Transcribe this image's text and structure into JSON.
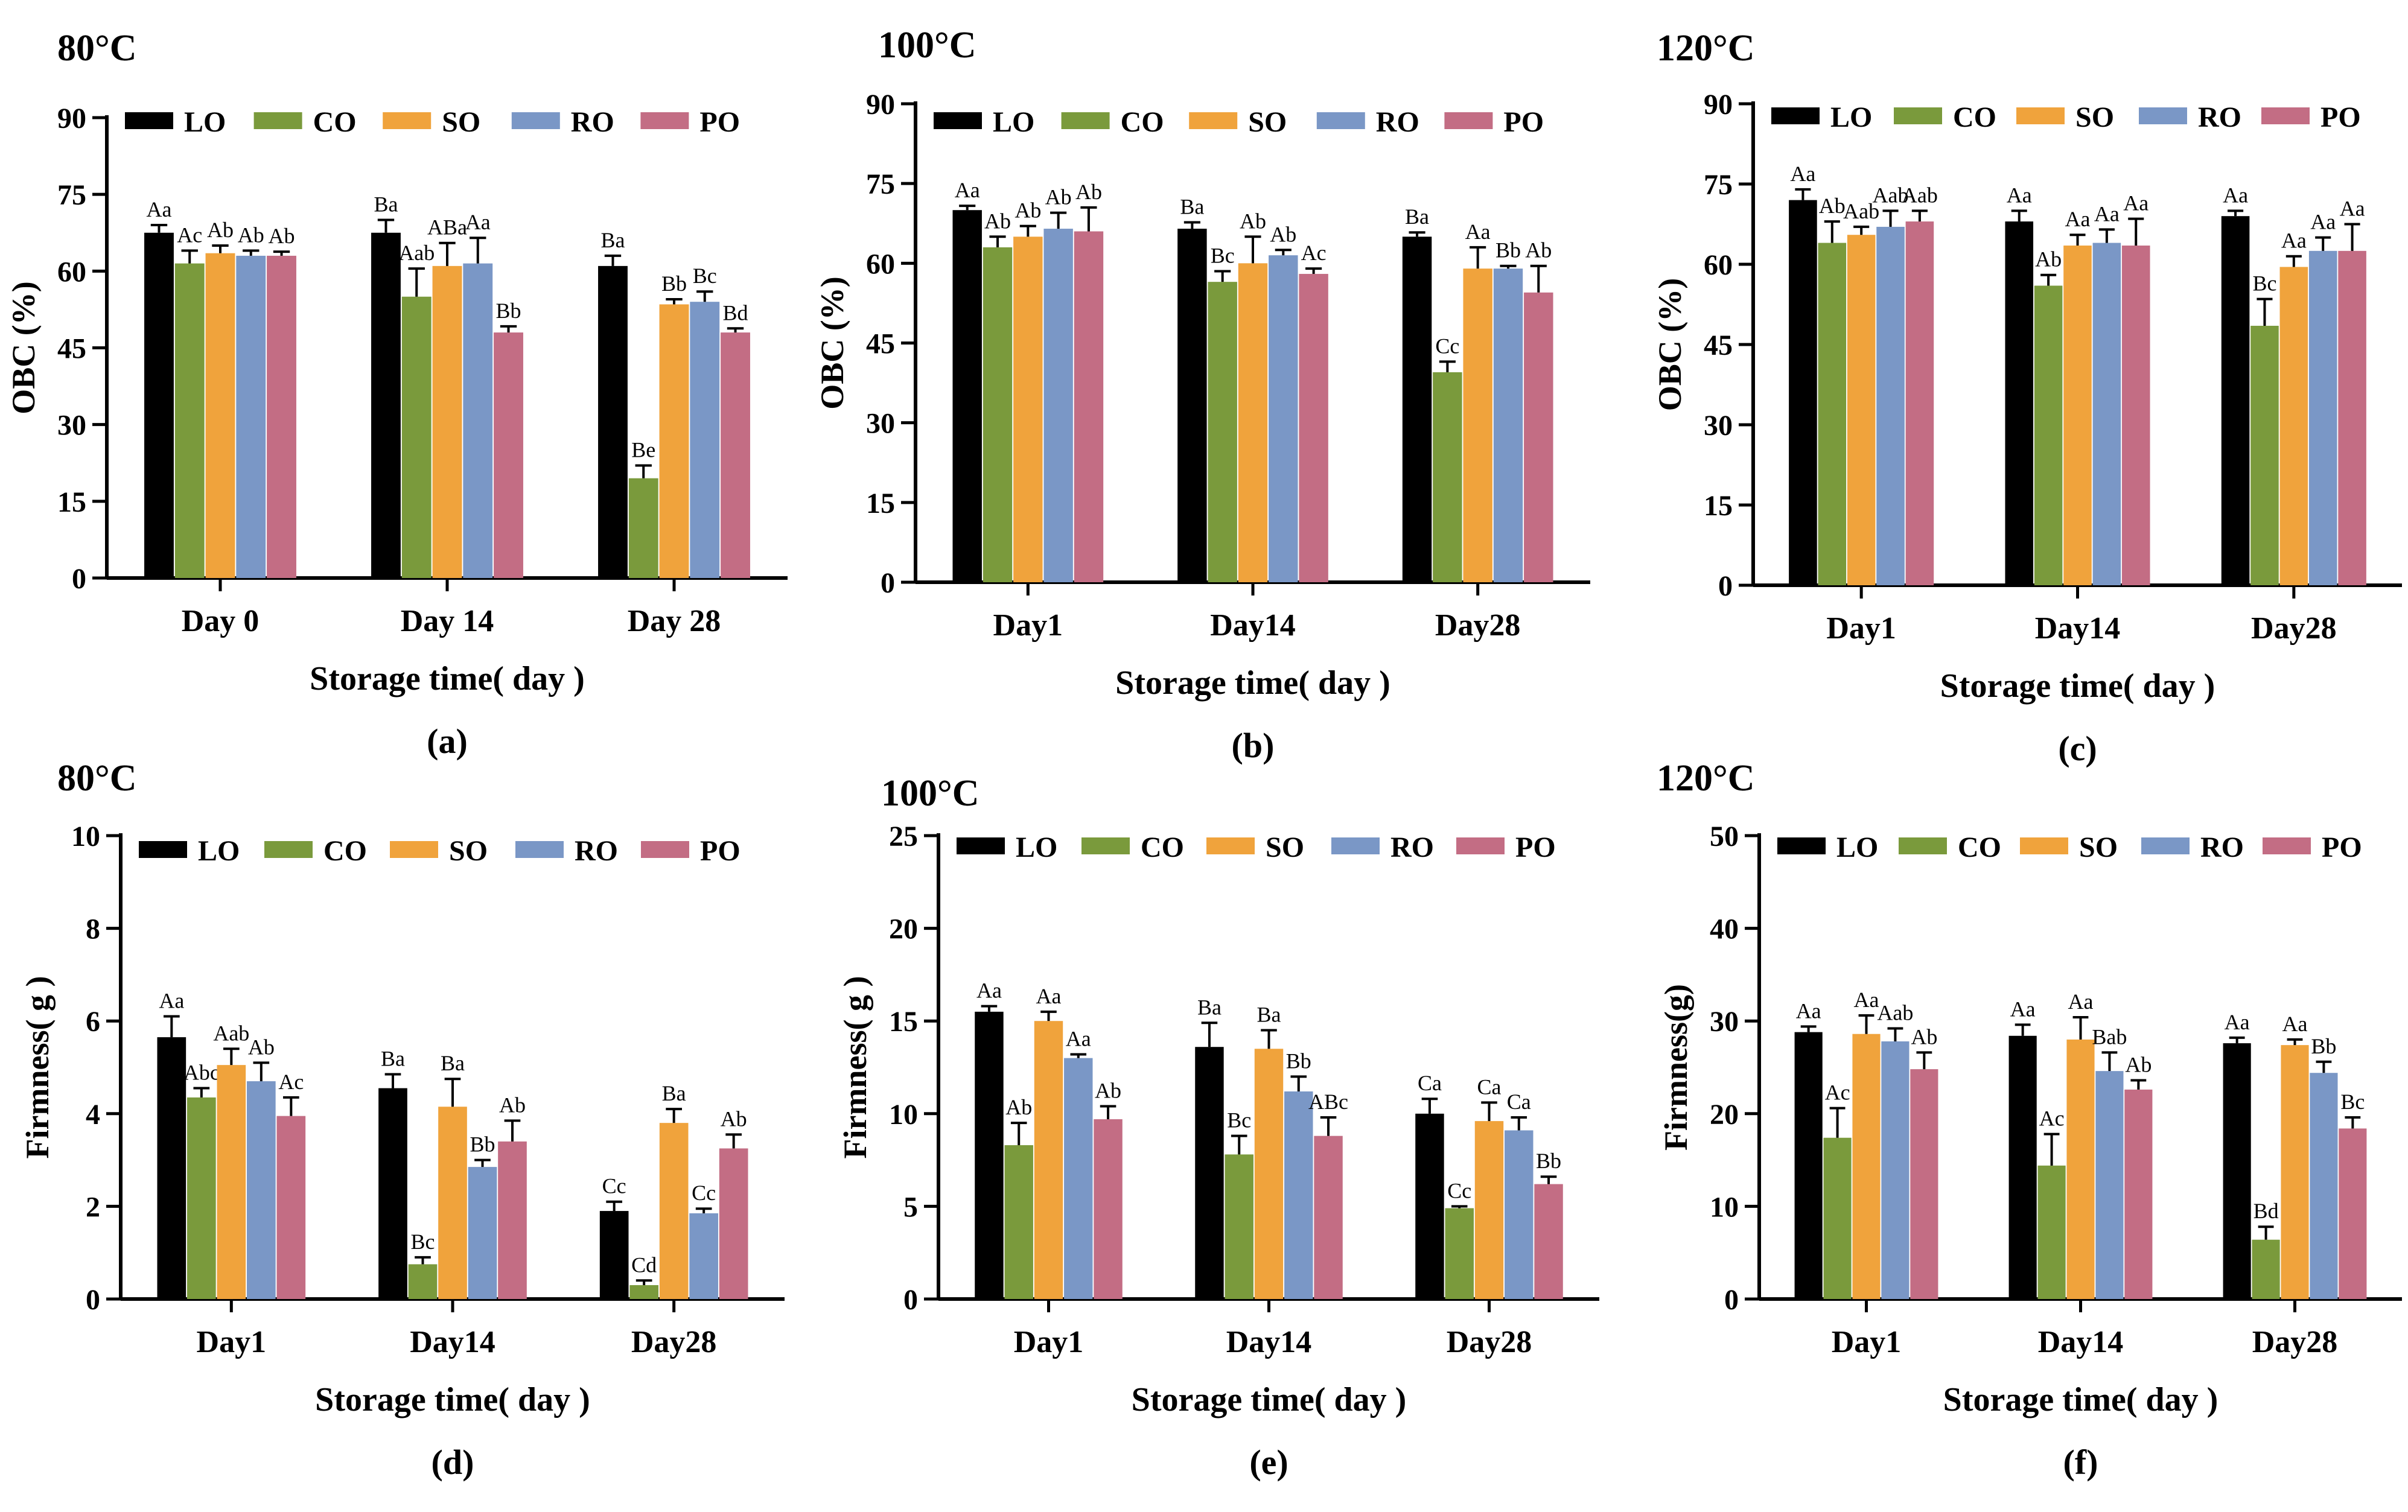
{
  "colors": {
    "LO": "#000000",
    "CO": "#7a9a3c",
    "SO": "#f0a33c",
    "RO": "#7a97c6",
    "PO": "#c36d84"
  },
  "series_names": [
    "LO",
    "CO",
    "SO",
    "RO",
    "PO"
  ],
  "chart_data": [
    {
      "type": "bar",
      "title": "80°C",
      "panel_label": "(a)",
      "xlabel": "Storage time( day )",
      "ylabel": "OBC (%)",
      "ylim": [
        0,
        90
      ],
      "yticks": [
        0,
        15,
        30,
        45,
        60,
        75,
        90
      ],
      "categories": [
        "Day 0",
        "Day 14",
        "Day 28"
      ],
      "series": [
        {
          "name": "LO",
          "values": [
            67.5,
            67.5,
            61.0
          ],
          "errors": [
            1.5,
            2.5,
            2.0
          ],
          "labels": [
            "Aa",
            "Ba",
            "Ba"
          ]
        },
        {
          "name": "CO",
          "values": [
            61.5,
            55.0,
            19.5
          ],
          "errors": [
            2.5,
            5.5,
            2.5
          ],
          "labels": [
            "Ac",
            "Aab",
            "Be"
          ]
        },
        {
          "name": "SO",
          "values": [
            63.5,
            61.0,
            53.5
          ],
          "errors": [
            1.5,
            4.5,
            1.0
          ],
          "labels": [
            "Ab",
            "ABa",
            "Bb"
          ]
        },
        {
          "name": "RO",
          "values": [
            63.0,
            61.5,
            54.0
          ],
          "errors": [
            1.0,
            5.0,
            2.0
          ],
          "labels": [
            "Ab",
            "Aa",
            "Bc"
          ]
        },
        {
          "name": "PO",
          "values": [
            63.0,
            48.0,
            48.0
          ],
          "errors": [
            0.8,
            1.2,
            0.8
          ],
          "labels": [
            "Ab",
            "Bb",
            "Bd"
          ]
        }
      ]
    },
    {
      "type": "bar",
      "title": "100°C",
      "panel_label": "(b)",
      "xlabel": "Storage time( day )",
      "ylabel": "OBC (%)",
      "ylim": [
        0,
        90
      ],
      "yticks": [
        0,
        15,
        30,
        45,
        60,
        75,
        90
      ],
      "categories": [
        "Day1",
        "Day14",
        "Day28"
      ],
      "series": [
        {
          "name": "LO",
          "values": [
            70.0,
            66.5,
            65.0
          ],
          "errors": [
            0.8,
            1.2,
            0.8
          ],
          "labels": [
            "Aa",
            "Ba",
            "Ba"
          ]
        },
        {
          "name": "CO",
          "values": [
            63.0,
            56.5,
            39.5
          ],
          "errors": [
            2.0,
            2.0,
            2.0
          ],
          "labels": [
            "Ab",
            "Bc",
            "Cc"
          ]
        },
        {
          "name": "SO",
          "values": [
            65.0,
            60.0,
            59.0
          ],
          "errors": [
            2.0,
            5.0,
            4.0
          ],
          "labels": [
            "Ab",
            "Ab",
            "Aa"
          ]
        },
        {
          "name": "RO",
          "values": [
            66.5,
            61.5,
            59.0
          ],
          "errors": [
            3.0,
            1.0,
            0.5
          ],
          "labels": [
            "Ab",
            "Ab",
            "Bb"
          ]
        },
        {
          "name": "PO",
          "values": [
            66.0,
            58.0,
            54.5
          ],
          "errors": [
            4.5,
            1.0,
            5.0
          ],
          "labels": [
            "Ab",
            "Ac",
            "Ab"
          ]
        }
      ]
    },
    {
      "type": "bar",
      "title": "120°C",
      "panel_label": "(c)",
      "xlabel": "Storage time( day )",
      "ylabel": "OBC (%)",
      "ylim": [
        0,
        90
      ],
      "yticks": [
        0,
        15,
        30,
        45,
        60,
        75,
        90
      ],
      "categories": [
        "Day1",
        "Day14",
        "Day28"
      ],
      "series": [
        {
          "name": "LO",
          "values": [
            72.0,
            68.0,
            69.0
          ],
          "errors": [
            2.0,
            2.0,
            1.0
          ],
          "labels": [
            "Aa",
            "Aa",
            "Aa"
          ]
        },
        {
          "name": "CO",
          "values": [
            64.0,
            56.0,
            48.5
          ],
          "errors": [
            4.0,
            2.0,
            5.0
          ],
          "labels": [
            "Ab",
            "Ab",
            "Bc"
          ]
        },
        {
          "name": "SO",
          "values": [
            65.5,
            63.5,
            59.5
          ],
          "errors": [
            1.5,
            2.0,
            2.0
          ],
          "labels": [
            "Aab",
            "Aa",
            "Aa"
          ]
        },
        {
          "name": "RO",
          "values": [
            67.0,
            64.0,
            62.5
          ],
          "errors": [
            3.0,
            2.5,
            2.5
          ],
          "labels": [
            "Aab",
            "Aa",
            "Aa"
          ]
        },
        {
          "name": "PO",
          "values": [
            68.0,
            63.5,
            62.5
          ],
          "errors": [
            2.0,
            5.0,
            5.0
          ],
          "labels": [
            "Aab",
            "Aa",
            "Aa"
          ]
        }
      ]
    },
    {
      "type": "bar",
      "title": "80°C",
      "panel_label": "(d)",
      "xlabel": "Storage time( day )",
      "ylabel": "Firmness( g )",
      "ylim": [
        0,
        10
      ],
      "yticks": [
        0,
        2,
        4,
        6,
        8,
        10
      ],
      "categories": [
        "Day1",
        "Day14",
        "Day28"
      ],
      "series": [
        {
          "name": "LO",
          "values": [
            5.65,
            4.55,
            1.9
          ],
          "errors": [
            0.45,
            0.3,
            0.2
          ],
          "labels": [
            "Aa",
            "Ba",
            "Cc"
          ]
        },
        {
          "name": "CO",
          "values": [
            4.35,
            0.75,
            0.3
          ],
          "errors": [
            0.2,
            0.15,
            0.1
          ],
          "labels": [
            "Abc",
            "Bc",
            "Cd"
          ]
        },
        {
          "name": "SO",
          "values": [
            5.05,
            4.15,
            3.8
          ],
          "errors": [
            0.35,
            0.6,
            0.3
          ],
          "labels": [
            "Aab",
            "Ba",
            "Ba"
          ]
        },
        {
          "name": "RO",
          "values": [
            4.7,
            2.85,
            1.85
          ],
          "errors": [
            0.4,
            0.15,
            0.1
          ],
          "labels": [
            "Ab",
            "Bb",
            "Cc"
          ]
        },
        {
          "name": "PO",
          "values": [
            3.95,
            3.4,
            3.25
          ],
          "errors": [
            0.4,
            0.45,
            0.3
          ],
          "labels": [
            "Ac",
            "Ab",
            "Ab"
          ]
        }
      ]
    },
    {
      "type": "bar",
      "title": "100°C",
      "panel_label": "(e)",
      "xlabel": "Storage time( day )",
      "ylabel": "Firmness( g )",
      "ylim": [
        0,
        25
      ],
      "yticks": [
        0,
        5,
        10,
        15,
        20,
        25
      ],
      "categories": [
        "Day1",
        "Day14",
        "Day28"
      ],
      "series": [
        {
          "name": "LO",
          "values": [
            15.5,
            13.6,
            10.0
          ],
          "errors": [
            0.3,
            1.3,
            0.8
          ],
          "labels": [
            "Aa",
            "Ba",
            "Ca"
          ]
        },
        {
          "name": "CO",
          "values": [
            8.3,
            7.8,
            4.9
          ],
          "errors": [
            1.2,
            1.0,
            0.1
          ],
          "labels": [
            "Ab",
            "Bc",
            "Cc"
          ]
        },
        {
          "name": "SO",
          "values": [
            15.0,
            13.5,
            9.6
          ],
          "errors": [
            0.5,
            1.0,
            1.0
          ],
          "labels": [
            "Aa",
            "Ba",
            "Ca"
          ]
        },
        {
          "name": "RO",
          "values": [
            13.0,
            11.2,
            9.1
          ],
          "errors": [
            0.2,
            0.8,
            0.7
          ],
          "labels": [
            "Aa",
            "Bb",
            "Ca"
          ]
        },
        {
          "name": "PO",
          "values": [
            9.7,
            8.8,
            6.2
          ],
          "errors": [
            0.7,
            1.0,
            0.4
          ],
          "labels": [
            "Ab",
            "ABc",
            "Bb"
          ]
        }
      ]
    },
    {
      "type": "bar",
      "title": "120°C",
      "panel_label": "(f)",
      "xlabel": "Storage time( day )",
      "ylabel": "Firmness(g)",
      "ylim": [
        0,
        50
      ],
      "yticks": [
        0,
        10,
        20,
        30,
        40,
        50
      ],
      "categories": [
        "Day1",
        "Day14",
        "Day28"
      ],
      "series": [
        {
          "name": "LO",
          "values": [
            28.8,
            28.4,
            27.6
          ],
          "errors": [
            0.6,
            1.2,
            0.6
          ],
          "labels": [
            "Aa",
            "Aa",
            "Aa"
          ]
        },
        {
          "name": "CO",
          "values": [
            17.4,
            14.4,
            6.4
          ],
          "errors": [
            3.2,
            3.4,
            1.4
          ],
          "labels": [
            "Ac",
            "Ac",
            "Bd"
          ]
        },
        {
          "name": "SO",
          "values": [
            28.6,
            28.0,
            27.4
          ],
          "errors": [
            2.0,
            2.4,
            0.6
          ],
          "labels": [
            "Aa",
            "Aa",
            "Aa"
          ]
        },
        {
          "name": "RO",
          "values": [
            27.8,
            24.6,
            24.4
          ],
          "errors": [
            1.4,
            2.0,
            1.2
          ],
          "labels": [
            "Aab",
            "Bab",
            "Bb"
          ]
        },
        {
          "name": "PO",
          "values": [
            24.8,
            22.6,
            18.4
          ],
          "errors": [
            1.8,
            1.0,
            1.2
          ],
          "labels": [
            "Ab",
            "Ab",
            "Bc"
          ]
        }
      ]
    }
  ]
}
